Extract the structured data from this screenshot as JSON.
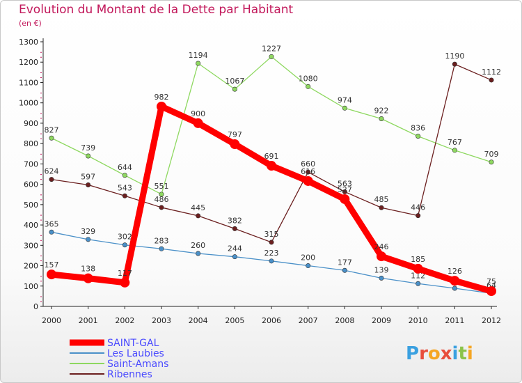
{
  "title": "Evolution du Montant de la Dette par Habitant",
  "subtitle": "(en €)",
  "logo_text": "Proxiti",
  "chart_data": {
    "type": "line",
    "title": "Evolution du Montant de la Dette par Habitant",
    "subtitle": "(en €)",
    "x": [
      "2000",
      "2001",
      "2002",
      "2003",
      "2004",
      "2005",
      "2006",
      "2007",
      "2008",
      "2009",
      "2010",
      "2011",
      "2012"
    ],
    "ylim": [
      0,
      1300
    ],
    "yticks": [
      0,
      100,
      200,
      300,
      400,
      500,
      600,
      700,
      800,
      900,
      1000,
      1100,
      1200,
      1300
    ],
    "grid": false,
    "legend": "bottom-left",
    "series": [
      {
        "name": "SAINT-GAL",
        "color": "#ff0000",
        "emphasis": true,
        "values": [
          157,
          138,
          117,
          982,
          900,
          797,
          691,
          616,
          527,
          246,
          185,
          126,
          75
        ]
      },
      {
        "name": "Les Laubies",
        "color": "#4a90c8",
        "values": [
          365,
          329,
          302,
          283,
          260,
          244,
          223,
          200,
          177,
          139,
          112,
          89,
          64
        ]
      },
      {
        "name": "Saint-Amans",
        "color": "#8ed860",
        "values": [
          827,
          739,
          644,
          551,
          1194,
          1067,
          1227,
          1080,
          974,
          922,
          836,
          767,
          709
        ]
      },
      {
        "name": "Ribennes",
        "color": "#6b1f1f",
        "values": [
          624,
          597,
          543,
          486,
          445,
          382,
          315,
          660,
          563,
          485,
          446,
          1190,
          1112
        ]
      }
    ]
  }
}
